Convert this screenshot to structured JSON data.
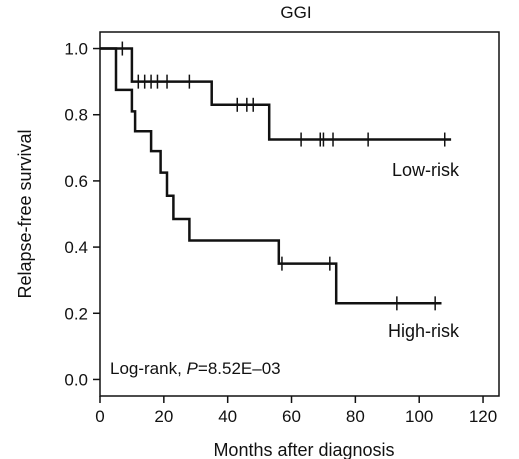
{
  "chart_data": {
    "type": "line",
    "title": "GGI",
    "xlabel": "Months after diagnosis",
    "ylabel": "Relapse-free survival",
    "xlim": [
      0,
      125
    ],
    "ylim": [
      -0.05,
      1.05
    ],
    "x_ticks": [
      0,
      20,
      40,
      60,
      80,
      100,
      120
    ],
    "y_ticks": [
      0.0,
      0.2,
      0.4,
      0.6,
      0.8,
      1.0
    ],
    "x_tick_labels": [
      "0",
      "20",
      "40",
      "60",
      "80",
      "100",
      "120"
    ],
    "y_tick_labels": [
      "0.0",
      "0.2",
      "0.4",
      "0.6",
      "0.8",
      "1.0"
    ],
    "grid": false,
    "annotation_prefix": "Log-rank, ",
    "annotation_p": "P",
    "annotation_suffix": "=8.52E–03",
    "series": [
      {
        "name": "Low-risk",
        "color": "#111111",
        "steps": [
          [
            0,
            1.0
          ],
          [
            10,
            0.9
          ],
          [
            35,
            0.83
          ],
          [
            53,
            0.725
          ],
          [
            110,
            0.725
          ]
        ],
        "censors": [
          [
            7,
            1.0
          ],
          [
            12,
            0.9
          ],
          [
            14,
            0.9
          ],
          [
            16,
            0.9
          ],
          [
            18,
            0.9
          ],
          [
            21,
            0.9
          ],
          [
            28,
            0.9
          ],
          [
            43,
            0.83
          ],
          [
            46,
            0.83
          ],
          [
            48,
            0.83
          ],
          [
            63,
            0.725
          ],
          [
            69,
            0.725
          ],
          [
            70,
            0.725
          ],
          [
            73,
            0.725
          ],
          [
            84,
            0.725
          ],
          [
            108,
            0.725
          ]
        ]
      },
      {
        "name": "High-risk",
        "color": "#111111",
        "steps": [
          [
            0,
            1.0
          ],
          [
            5,
            0.875
          ],
          [
            10,
            0.81
          ],
          [
            11,
            0.75
          ],
          [
            16,
            0.69
          ],
          [
            19,
            0.625
          ],
          [
            21,
            0.555
          ],
          [
            23,
            0.485
          ],
          [
            28,
            0.42
          ],
          [
            56,
            0.35
          ],
          [
            74,
            0.23
          ],
          [
            107,
            0.23
          ]
        ],
        "censors": [
          [
            57,
            0.35
          ],
          [
            72,
            0.35
          ],
          [
            93,
            0.23
          ],
          [
            105,
            0.23
          ]
        ]
      }
    ]
  }
}
